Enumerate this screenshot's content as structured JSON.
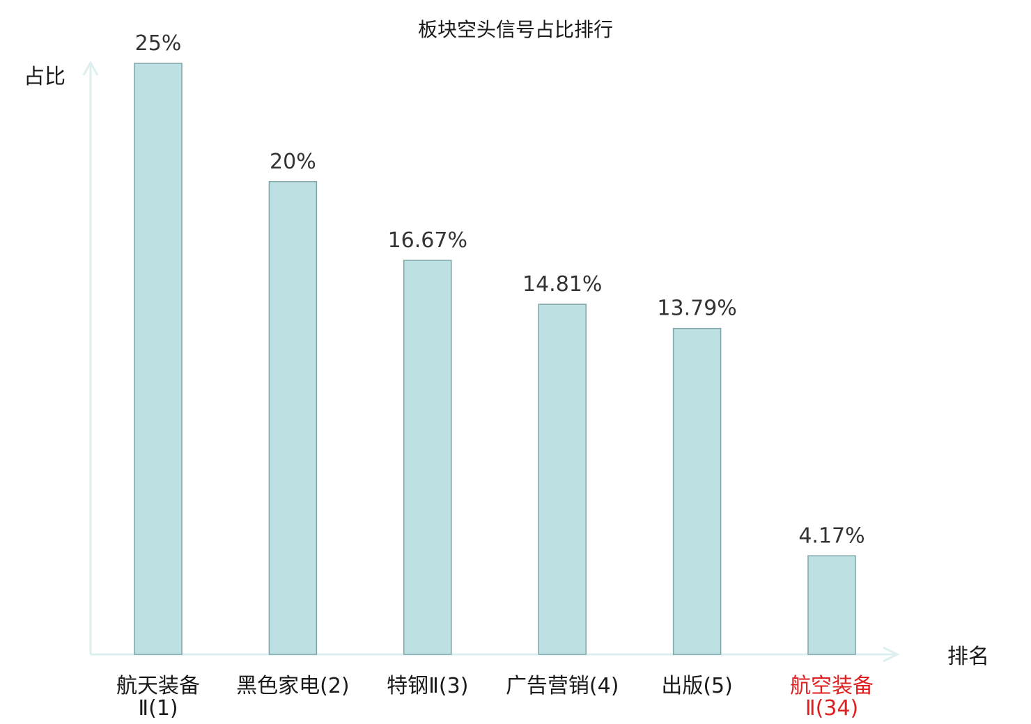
{
  "chart_data": {
    "type": "bar",
    "title": "板块空头信号占比排行",
    "ylabel": "占比",
    "xlabel": "排名",
    "ylim": [
      0,
      25
    ],
    "categories": [
      [
        "航天装备",
        "Ⅱ(1)"
      ],
      [
        "黑色家电(2)"
      ],
      [
        "特钢Ⅱ(3)"
      ],
      [
        "广告营销(4)"
      ],
      [
        "出版(5)"
      ],
      [
        "航空装备",
        "Ⅱ(34)"
      ]
    ],
    "values": [
      25,
      20,
      16.67,
      14.81,
      13.79,
      4.17
    ],
    "value_labels": [
      "25%",
      "20%",
      "16.67%",
      "14.81%",
      "13.79%",
      "4.17%"
    ],
    "highlight_index": 5,
    "grid": false,
    "colors": {
      "bar_fill": "#bde0e3",
      "bar_stroke": "#7fa3a6",
      "axis": "#dcefee",
      "label": "#1a1a1a",
      "value": "#333333",
      "highlight": "#e02020"
    }
  }
}
